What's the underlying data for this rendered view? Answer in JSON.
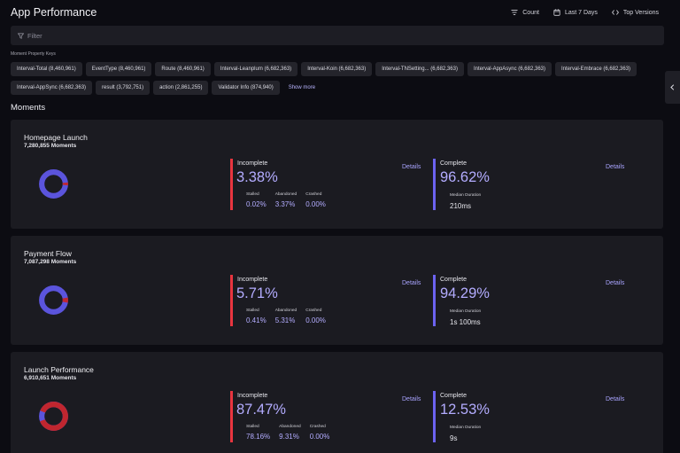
{
  "header": {
    "title": "App Performance",
    "count_label": "Count",
    "range_label": "Last 7 Days",
    "versions_label": "Top Versions"
  },
  "filter": {
    "placeholder": "Filter"
  },
  "property_keys": {
    "label": "Moment Property Keys",
    "row1": [
      "Interval-Total (8,460,961)",
      "EventType (8,460,961)",
      "Route (8,460,961)",
      "Interval-Leanplum (6,682,363)",
      "Interval-Koin (6,682,363)",
      "Interval-TNSetting... (6,682,363)",
      "Interval-AppAsync (6,682,363)",
      "Interval-Embrace (6,682,363)"
    ],
    "row2": [
      "Interval-AppSync (6,682,363)",
      "result (3,792,751)",
      "action (2,861,255)",
      "Validator Info (874,940)"
    ],
    "show_more": "Show more"
  },
  "section": {
    "title": "Moments"
  },
  "moments": [
    {
      "name": "Homepage Launch",
      "count": "7,280,855 Moments",
      "incomplete_label": "Incomplete",
      "incomplete_pct": "3.38%",
      "incomplete_value": 3.38,
      "stalled_label": "Stalled",
      "stalled": "0.02%",
      "abandoned_label": "Abandoned",
      "abandoned": "3.37%",
      "crashed_label": "Crashed",
      "crashed": "0.00%",
      "complete_label": "Complete",
      "complete_pct": "96.62%",
      "median_label": "Median Duration",
      "median": "210ms",
      "details_label": "Details"
    },
    {
      "name": "Payment Flow",
      "count": "7,087,298 Moments",
      "incomplete_label": "Incomplete",
      "incomplete_pct": "5.71%",
      "incomplete_value": 5.71,
      "stalled_label": "Stalled",
      "stalled": "0.41%",
      "abandoned_label": "Abandoned",
      "abandoned": "5.31%",
      "crashed_label": "Crashed",
      "crashed": "0.00%",
      "complete_label": "Complete",
      "complete_pct": "94.29%",
      "median_label": "Median Duration",
      "median": "1s 100ms",
      "details_label": "Details"
    },
    {
      "name": "Launch Performance",
      "count": "6,910,651 Moments",
      "incomplete_label": "Incomplete",
      "incomplete_pct": "87.47%",
      "incomplete_value": 87.47,
      "stalled_label": "Stalled",
      "stalled": "78.16%",
      "abandoned_label": "Abandoned",
      "abandoned": "9.31%",
      "crashed_label": "Crashed",
      "crashed": "0.00%",
      "complete_label": "Complete",
      "complete_pct": "12.53%",
      "median_label": "Median Duration",
      "median": "9s",
      "details_label": "Details"
    }
  ],
  "colors": {
    "incomplete": "#c0262f",
    "complete": "#5b54dc",
    "accent": "#b3acff"
  }
}
